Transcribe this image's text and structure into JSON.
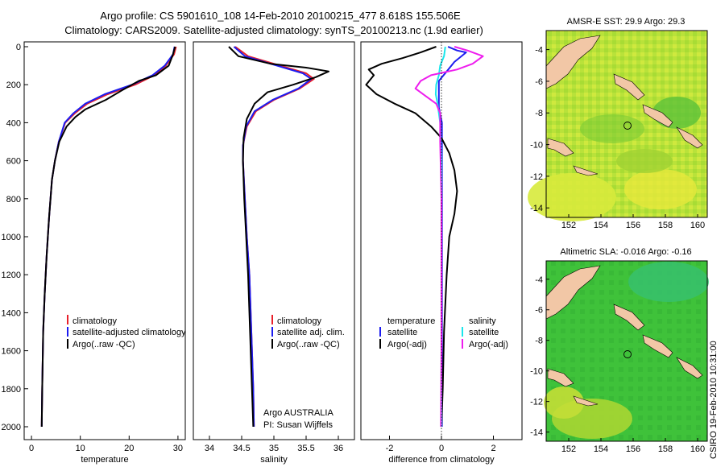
{
  "header": {
    "line1": "Argo profile: CS 5901610_108 14-Feb-2010 20100215_477 8.618S 155.506E",
    "line2": "Climatology: CARS2009. Satellite-adjusted climatology: synTS_20100213.nc (1.9d earlier)"
  },
  "credit": "CSIRO 19-Feb-2010 10:31:00",
  "colors": {
    "climatology": "#e8202a",
    "satellite": "#1c1cf0",
    "argo": "#000000",
    "sat_diff": "#19e6ec",
    "argo_diff": "#ee1dee"
  },
  "chart_data": [
    {
      "type": "line",
      "xlabel": "temperature",
      "ylabel": "",
      "xlim": [
        -1.5,
        31.5
      ],
      "ylim": [
        2000,
        0
      ],
      "x_ticks": [
        "0",
        "10",
        "20",
        "30"
      ],
      "y_ticks": [
        "0",
        "200",
        "400",
        "600",
        "800",
        "1000",
        "1200",
        "1400",
        "1600",
        "1800",
        "2000"
      ],
      "legend": [
        "climatology",
        "satellite-adjusted climatology",
        "Argo(..raw -QC)"
      ],
      "series": [
        {
          "name": "climatology",
          "color": "#e8202a",
          "x": [
            29.6,
            29.2,
            27.5,
            25.2,
            21.2,
            15.6,
            11.4,
            8.9,
            6.9,
            5.6,
            4.8,
            4.2,
            3.6,
            3.1,
            2.7,
            2.4,
            2.2,
            2.1
          ],
          "y": [
            0,
            40,
            100,
            150,
            200,
            250,
            300,
            350,
            400,
            500,
            600,
            700,
            900,
            1100,
            1300,
            1500,
            1800,
            2000
          ]
        },
        {
          "name": "satellite-adjusted climatology",
          "color": "#1c1cf0",
          "x": [
            29.3,
            29.0,
            27.3,
            24.8,
            20.6,
            15.0,
            11.0,
            8.6,
            6.8,
            5.6,
            4.8,
            4.2,
            3.6,
            3.1,
            2.7,
            2.4,
            2.2,
            2.1
          ],
          "y": [
            0,
            40,
            100,
            150,
            200,
            250,
            300,
            350,
            400,
            500,
            600,
            700,
            900,
            1100,
            1300,
            1500,
            1800,
            2000
          ]
        },
        {
          "name": "Argo(..raw -QC)",
          "color": "#000000",
          "x": [
            29.4,
            29.0,
            28.1,
            25.5,
            22.0,
            18.5,
            15.2,
            11.0,
            9.0,
            7.2,
            5.7,
            4.8,
            4.2,
            3.6,
            3.1,
            2.7,
            2.4,
            2.2,
            2.1
          ],
          "y": [
            0,
            40,
            100,
            150,
            180,
            230,
            280,
            330,
            370,
            420,
            500,
            600,
            700,
            900,
            1100,
            1300,
            1500,
            1800,
            2000
          ]
        }
      ]
    },
    {
      "type": "line",
      "xlabel": "salinity",
      "xlim": [
        33.75,
        36.25
      ],
      "ylim": [
        2000,
        0
      ],
      "x_ticks": [
        "34",
        "34.5",
        "35",
        "35.5",
        "36"
      ],
      "legend": [
        "climatology",
        "satellite adj. clim.",
        "Argo(..raw -QC)"
      ],
      "annotation": [
        "Argo AUSTRALIA",
        "PI: Susan Wijffels"
      ],
      "series": [
        {
          "name": "climatology",
          "color": "#e8202a",
          "x": [
            34.4,
            34.6,
            35.1,
            35.5,
            35.62,
            35.4,
            35.0,
            34.72,
            34.58,
            34.52,
            34.52,
            34.55,
            34.58,
            34.62,
            34.65,
            34.68,
            34.69
          ],
          "y": [
            0,
            50,
            100,
            140,
            170,
            220,
            280,
            340,
            420,
            520,
            600,
            800,
            1000,
            1200,
            1500,
            1800,
            2000
          ]
        },
        {
          "name": "satellite adj. clim.",
          "color": "#1c1cf0",
          "x": [
            34.38,
            34.55,
            35.05,
            35.45,
            35.58,
            35.38,
            34.98,
            34.7,
            34.57,
            34.52,
            34.52,
            34.55,
            34.58,
            34.62,
            34.65,
            34.68,
            34.69
          ],
          "y": [
            0,
            50,
            100,
            140,
            170,
            220,
            280,
            340,
            420,
            520,
            600,
            800,
            1000,
            1200,
            1500,
            1800,
            2000
          ]
        },
        {
          "name": "Argo(..raw -QC)",
          "color": "#000000",
          "x": [
            34.3,
            34.45,
            34.95,
            35.5,
            35.85,
            35.65,
            35.3,
            34.9,
            34.7,
            34.58,
            34.53,
            34.52,
            34.54,
            34.57,
            34.6,
            34.63,
            34.66,
            34.68
          ],
          "y": [
            0,
            50,
            90,
            110,
            130,
            160,
            200,
            240,
            300,
            380,
            480,
            600,
            800,
            1000,
            1200,
            1500,
            1800,
            2000
          ]
        }
      ]
    },
    {
      "type": "line",
      "xlabel": "difference from climatology",
      "xlim": [
        -3.1,
        3.1
      ],
      "ylim": [
        2000,
        0
      ],
      "x_ticks": [
        "-2",
        "0",
        "2"
      ],
      "legend_temperature": [
        "temperature",
        "satellite",
        "Argo(-adj)"
      ],
      "legend_salinity": [
        "salinity",
        "satellite",
        "Argo(-adj)"
      ],
      "series": [
        {
          "name": "satellite",
          "color": "#1c1cf0",
          "x": [
            0.25,
            0.6,
            0.95,
            0.5,
            0.2,
            -0.1,
            -0.1,
            -0.1,
            0.02,
            0.02,
            0.02,
            0.02,
            0.02
          ],
          "y": [
            0,
            20,
            30,
            80,
            130,
            180,
            250,
            320,
            400,
            600,
            1000,
            1500,
            2000
          ]
        },
        {
          "name": "Argo(-adj)",
          "color": "#000000",
          "x": [
            -0.2,
            -0.8,
            -1.5,
            -2.3,
            -2.8,
            -2.6,
            -2.9,
            -2.5,
            -1.8,
            -1.0,
            -0.4,
            0.0,
            0.3,
            0.5,
            0.6,
            0.5,
            0.3,
            0.2,
            0.1,
            0.05,
            0.0
          ],
          "y": [
            0,
            30,
            60,
            90,
            120,
            150,
            200,
            250,
            300,
            350,
            420,
            480,
            560,
            650,
            760,
            880,
            1000,
            1200,
            1500,
            1800,
            2000
          ]
        },
        {
          "name": "satellite",
          "color": "#19e6ec",
          "x": [
            0.15,
            0.1,
            -0.05,
            -0.1,
            -0.2,
            -0.22,
            -0.15,
            -0.05,
            0.0,
            0.0,
            0.0
          ],
          "y": [
            0,
            50,
            100,
            150,
            200,
            250,
            300,
            400,
            600,
            1000,
            2000
          ]
        },
        {
          "name": "Argo(-adj)",
          "color": "#ee1dee",
          "x": [
            0.5,
            1.0,
            1.6,
            1.2,
            0.6,
            -0.4,
            -0.8,
            -1.0,
            -0.6,
            -0.2,
            -0.05,
            -0.05,
            0.0,
            0.0,
            0.0,
            -0.02
          ],
          "y": [
            0,
            20,
            50,
            90,
            120,
            150,
            180,
            220,
            260,
            300,
            350,
            500,
            800,
            1200,
            1600,
            2000
          ]
        }
      ]
    },
    {
      "type": "heatmap",
      "title": "AMSR-E SST: 29.9 Argo: 29.3",
      "xlim": [
        150.6,
        160.6
      ],
      "ylim": [
        -14.6,
        -2.8
      ],
      "x_ticks": [
        "152",
        "154",
        "156",
        "158",
        "160"
      ],
      "y_ticks": [
        "-4",
        "-6",
        "-8",
        "-10",
        "-12",
        "-14"
      ],
      "float_position": {
        "lon": 155.506,
        "lat": -8.618
      }
    },
    {
      "type": "heatmap",
      "title": "Altimetric SLA: -0.016 Argo: -0.16",
      "xlim": [
        150.6,
        160.6
      ],
      "ylim": [
        -14.6,
        -2.8
      ],
      "x_ticks": [
        "152",
        "154",
        "156",
        "158",
        "160"
      ],
      "y_ticks": [
        "-4",
        "-6",
        "-8",
        "-10",
        "-12",
        "-14"
      ],
      "float_position": {
        "lon": 155.506,
        "lat": -8.618
      }
    }
  ]
}
